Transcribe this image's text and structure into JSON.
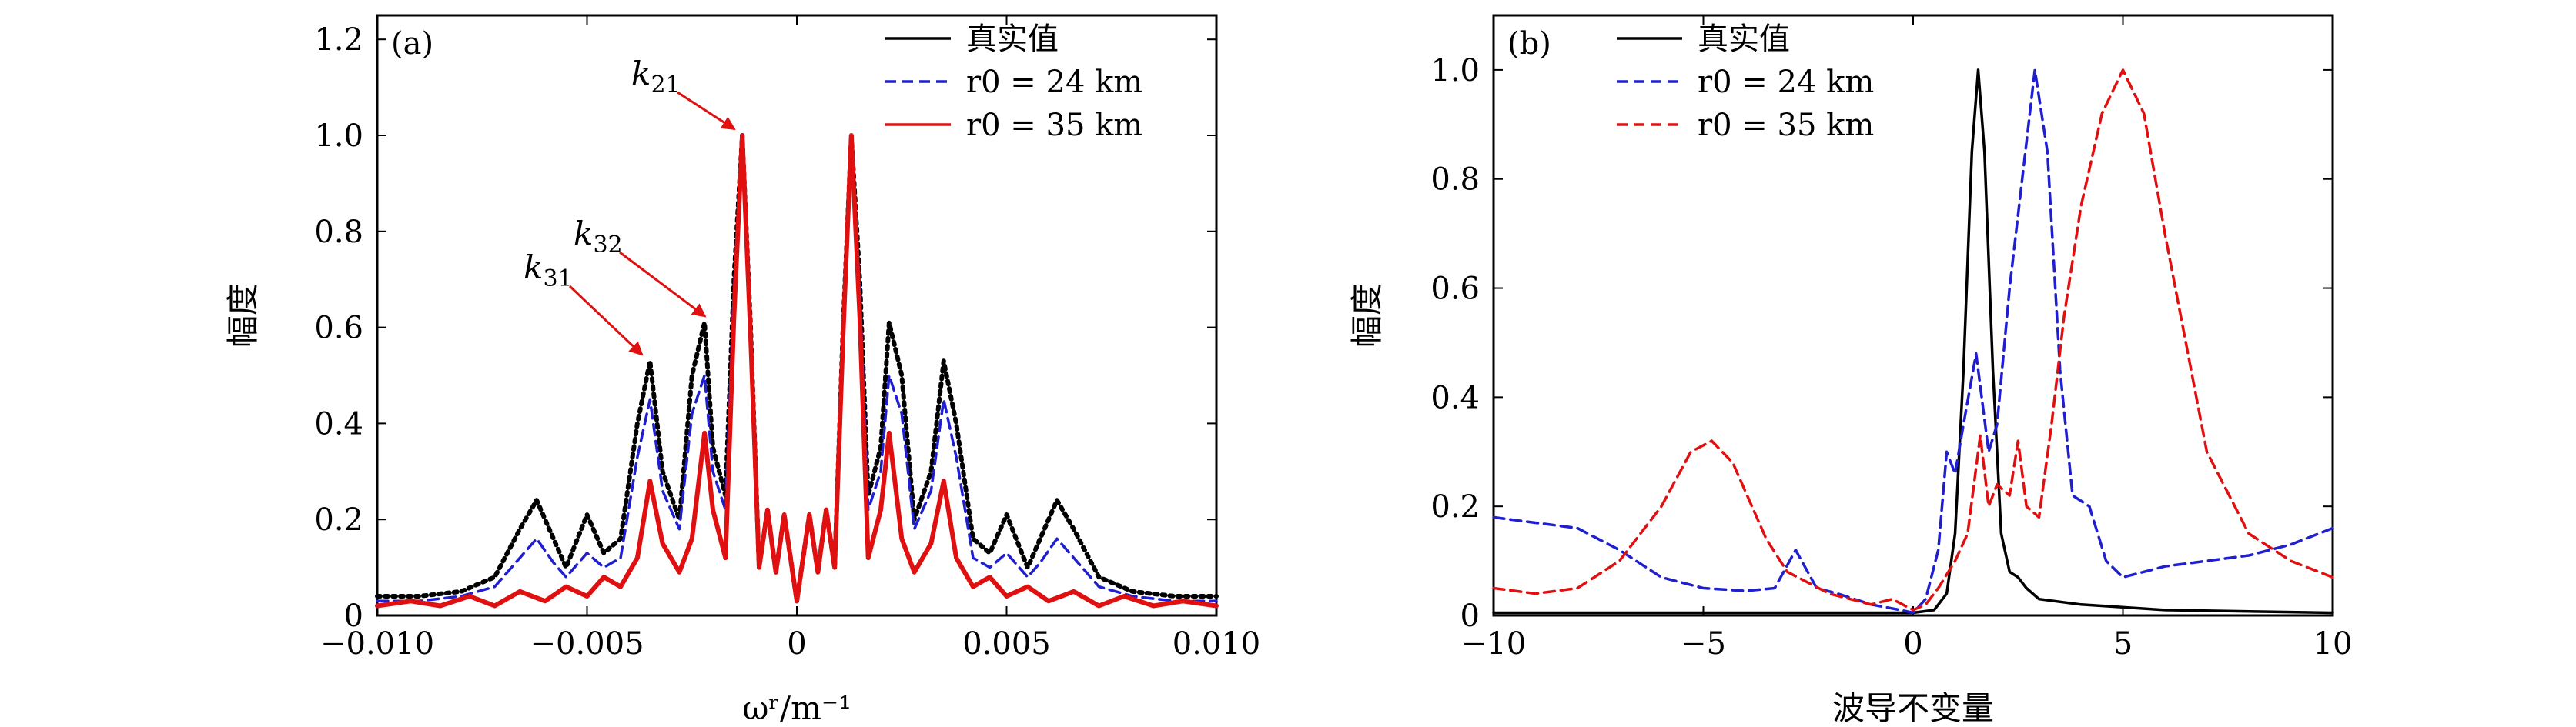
{
  "chart_data": [
    {
      "type": "line",
      "panel_label": "(a)",
      "title": "",
      "xlabel": "ωʳ/m⁻¹",
      "ylabel": "幅度",
      "xlim": [
        -0.01,
        0.01
      ],
      "ylim": [
        0,
        1.25
      ],
      "xticks": [
        -0.01,
        -0.005,
        0,
        0.005,
        0.01
      ],
      "xtick_labels": [
        "−0.010",
        "−0.005",
        "0",
        "0.005",
        "0.010"
      ],
      "yticks": [
        0,
        0.2,
        0.4,
        0.6,
        0.8,
        1.0,
        1.2
      ],
      "ytick_labels": [
        "0",
        "0.2",
        "0.4",
        "0.6",
        "0.8",
        "1.0",
        "1.2"
      ],
      "legend_position": "top-right",
      "series": [
        {
          "name": "真实值",
          "legend_label": "真实值",
          "color": "#000000",
          "style": "dotted",
          "x": [
            -0.01,
            -0.009,
            -0.008,
            -0.0072,
            -0.0066,
            -0.0062,
            -0.0058,
            -0.0055,
            -0.005,
            -0.0046,
            -0.0042,
            -0.0038,
            -0.0035,
            -0.0032,
            -0.0028,
            -0.0025,
            -0.0022,
            -0.002,
            -0.0017,
            -0.0015,
            -0.0013,
            -0.0011,
            -0.0009,
            -0.0007,
            -0.0005,
            -0.0003,
            0.0,
            0.0003,
            0.0005,
            0.0007,
            0.0009,
            0.0011,
            0.0013,
            0.0015,
            0.0017,
            0.002,
            0.0022,
            0.0025,
            0.0028,
            0.0032,
            0.0035,
            0.0038,
            0.0042,
            0.0046,
            0.005,
            0.0055,
            0.0058,
            0.0062,
            0.0066,
            0.0072,
            0.008,
            0.009,
            0.01
          ],
          "y": [
            0.04,
            0.04,
            0.05,
            0.08,
            0.18,
            0.24,
            0.16,
            0.1,
            0.21,
            0.13,
            0.16,
            0.4,
            0.53,
            0.3,
            0.2,
            0.5,
            0.61,
            0.35,
            0.25,
            0.7,
            1.0,
            0.6,
            0.1,
            0.22,
            0.09,
            0.21,
            0.03,
            0.21,
            0.09,
            0.22,
            0.1,
            0.6,
            1.0,
            0.7,
            0.25,
            0.35,
            0.61,
            0.5,
            0.2,
            0.3,
            0.53,
            0.4,
            0.16,
            0.13,
            0.21,
            0.1,
            0.16,
            0.24,
            0.18,
            0.08,
            0.05,
            0.04,
            0.04
          ]
        },
        {
          "name": "r0 = 24 km",
          "legend_label": "r0 = 24 km",
          "color": "#1f1fd0",
          "style": "dashed",
          "x": [
            -0.01,
            -0.009,
            -0.008,
            -0.0072,
            -0.0066,
            -0.0062,
            -0.0058,
            -0.0055,
            -0.005,
            -0.0046,
            -0.0042,
            -0.0038,
            -0.0035,
            -0.0032,
            -0.0028,
            -0.0025,
            -0.0022,
            -0.002,
            -0.0017,
            -0.0015,
            -0.0013,
            -0.0011,
            -0.0009,
            -0.0007,
            -0.0005,
            -0.0003,
            0.0,
            0.0003,
            0.0005,
            0.0007,
            0.0009,
            0.0011,
            0.0013,
            0.0015,
            0.0017,
            0.002,
            0.0022,
            0.0025,
            0.0028,
            0.0032,
            0.0035,
            0.0038,
            0.0042,
            0.0046,
            0.005,
            0.0055,
            0.0058,
            0.0062,
            0.0066,
            0.0072,
            0.008,
            0.009,
            0.01
          ],
          "y": [
            0.03,
            0.03,
            0.04,
            0.06,
            0.12,
            0.16,
            0.11,
            0.08,
            0.13,
            0.1,
            0.12,
            0.33,
            0.45,
            0.26,
            0.18,
            0.42,
            0.5,
            0.3,
            0.22,
            0.68,
            1.0,
            0.58,
            0.1,
            0.22,
            0.09,
            0.21,
            0.03,
            0.21,
            0.09,
            0.22,
            0.1,
            0.58,
            1.0,
            0.68,
            0.22,
            0.3,
            0.5,
            0.42,
            0.18,
            0.26,
            0.45,
            0.33,
            0.12,
            0.1,
            0.13,
            0.08,
            0.11,
            0.16,
            0.12,
            0.06,
            0.04,
            0.03,
            0.03
          ]
        },
        {
          "name": "r0 = 35 km",
          "legend_label": "r0 = 35 km",
          "color": "#e01010",
          "style": "solid",
          "x": [
            -0.01,
            -0.0092,
            -0.0085,
            -0.0078,
            -0.0072,
            -0.0066,
            -0.006,
            -0.0055,
            -0.005,
            -0.0046,
            -0.0042,
            -0.0038,
            -0.0035,
            -0.0032,
            -0.0028,
            -0.0025,
            -0.0022,
            -0.002,
            -0.0017,
            -0.0015,
            -0.0013,
            -0.0011,
            -0.0009,
            -0.0007,
            -0.0005,
            -0.0003,
            0.0,
            0.0003,
            0.0005,
            0.0007,
            0.0009,
            0.0011,
            0.0013,
            0.0015,
            0.0017,
            0.002,
            0.0022,
            0.0025,
            0.0028,
            0.0032,
            0.0035,
            0.0038,
            0.0042,
            0.0046,
            0.005,
            0.0055,
            0.006,
            0.0066,
            0.0072,
            0.0078,
            0.0085,
            0.0092,
            0.01
          ],
          "y": [
            0.02,
            0.03,
            0.02,
            0.04,
            0.02,
            0.05,
            0.03,
            0.06,
            0.04,
            0.08,
            0.06,
            0.12,
            0.28,
            0.15,
            0.09,
            0.16,
            0.38,
            0.22,
            0.12,
            0.62,
            1.0,
            0.58,
            0.1,
            0.22,
            0.09,
            0.21,
            0.03,
            0.21,
            0.09,
            0.22,
            0.1,
            0.58,
            1.0,
            0.62,
            0.12,
            0.22,
            0.38,
            0.16,
            0.09,
            0.15,
            0.28,
            0.12,
            0.06,
            0.08,
            0.04,
            0.06,
            0.03,
            0.05,
            0.02,
            0.04,
            0.02,
            0.03,
            0.02
          ]
        }
      ],
      "annotations": [
        {
          "label": "k",
          "subscript": "21",
          "arrow_to": [
            -0.0013,
            1.0
          ]
        },
        {
          "label": "k",
          "subscript": "32",
          "arrow_to": [
            -0.002,
            0.61
          ]
        },
        {
          "label": "k",
          "subscript": "31",
          "arrow_to": [
            -0.0035,
            0.53
          ]
        }
      ]
    },
    {
      "type": "line",
      "panel_label": "(b)",
      "title": "",
      "xlabel": "波导不变量",
      "ylabel": "幅度",
      "xlim": [
        -10,
        10
      ],
      "ylim": [
        0,
        1.1
      ],
      "xticks": [
        -10,
        -5,
        0,
        5,
        10
      ],
      "xtick_labels": [
        "−10",
        "−5",
        "0",
        "5",
        "10"
      ],
      "yticks": [
        0,
        0.2,
        0.4,
        0.6,
        0.8,
        1.0
      ],
      "ytick_labels": [
        "0",
        "0.2",
        "0.4",
        "0.6",
        "0.8",
        "1.0"
      ],
      "legend_position": "top-left",
      "series": [
        {
          "name": "真实值",
          "legend_label": "真实值",
          "color": "#000000",
          "style": "solid",
          "x": [
            -10,
            -5,
            -1,
            0,
            0.5,
            0.8,
            1.0,
            1.2,
            1.4,
            1.55,
            1.7,
            1.9,
            2.1,
            2.3,
            2.5,
            2.7,
            3.0,
            4,
            6,
            10
          ],
          "y": [
            0.005,
            0.005,
            0.005,
            0.005,
            0.01,
            0.04,
            0.15,
            0.45,
            0.85,
            1.0,
            0.85,
            0.45,
            0.15,
            0.08,
            0.07,
            0.05,
            0.03,
            0.02,
            0.01,
            0.005
          ]
        },
        {
          "name": "r0 = 24 km",
          "legend_label": "r0 = 24 km",
          "color": "#1f1fd0",
          "style": "dashed",
          "x": [
            -10,
            -9,
            -8,
            -7,
            -6,
            -5,
            -4,
            -3.3,
            -2.8,
            -2.3,
            -1.8,
            -1.0,
            -0.3,
            0,
            0.3,
            0.6,
            0.8,
            1.0,
            1.2,
            1.5,
            1.8,
            2.0,
            2.3,
            2.6,
            2.9,
            3.2,
            3.5,
            3.8,
            4.2,
            4.6,
            5.0,
            5.5,
            6,
            7,
            8,
            9,
            10
          ],
          "y": [
            0.18,
            0.17,
            0.16,
            0.12,
            0.07,
            0.05,
            0.045,
            0.05,
            0.12,
            0.05,
            0.04,
            0.02,
            0.01,
            0.005,
            0.03,
            0.12,
            0.3,
            0.26,
            0.35,
            0.48,
            0.3,
            0.35,
            0.6,
            0.8,
            1.0,
            0.85,
            0.45,
            0.22,
            0.2,
            0.1,
            0.07,
            0.08,
            0.09,
            0.1,
            0.11,
            0.13,
            0.16
          ]
        },
        {
          "name": "r0 = 35 km",
          "legend_label": "r0 = 35 km",
          "color": "#e01010",
          "style": "dashed",
          "x": [
            -10,
            -9,
            -8,
            -7,
            -6,
            -5.3,
            -4.8,
            -4.3,
            -3.5,
            -3,
            -2.5,
            -2,
            -1.5,
            -1,
            -0.5,
            0,
            0.3,
            0.6,
            1.0,
            1.3,
            1.6,
            1.8,
            2.0,
            2.3,
            2.5,
            2.7,
            3.0,
            3.3,
            3.6,
            4.0,
            4.5,
            5.0,
            5.5,
            6.0,
            7,
            8,
            9,
            10
          ],
          "y": [
            0.05,
            0.04,
            0.05,
            0.1,
            0.2,
            0.3,
            0.32,
            0.28,
            0.14,
            0.08,
            0.06,
            0.04,
            0.03,
            0.02,
            0.03,
            0.01,
            0.02,
            0.05,
            0.1,
            0.15,
            0.33,
            0.2,
            0.24,
            0.22,
            0.32,
            0.2,
            0.18,
            0.35,
            0.55,
            0.75,
            0.92,
            1.0,
            0.92,
            0.7,
            0.3,
            0.15,
            0.1,
            0.07
          ]
        }
      ]
    }
  ]
}
